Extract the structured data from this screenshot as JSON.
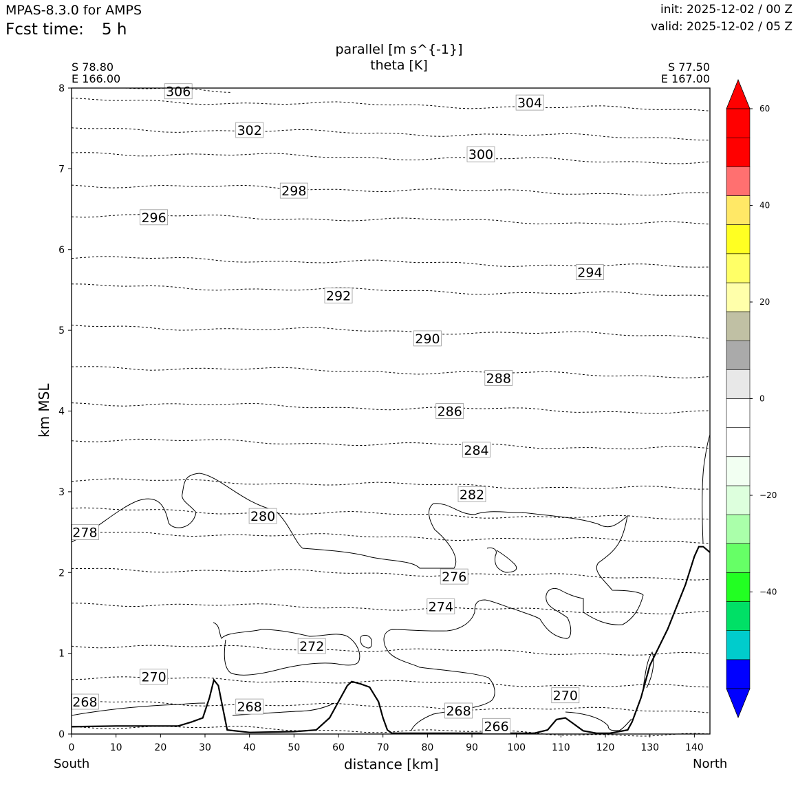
{
  "header": {
    "model": "MPAS-8.3.0 for AMPS",
    "fcst_label": "Fcst time:",
    "fcst_value": "5 h",
    "init": "init: 2025-12-02 / 00 Z",
    "valid": "valid: 2025-12-02 / 05 Z"
  },
  "title": {
    "line1": "parallel [m s^{-1}]",
    "line2": "theta [K]"
  },
  "endpoints": {
    "left_lat": "S 78.80",
    "left_lon": "E 166.00",
    "right_lat": "S 77.50",
    "right_lon": "E 167.00",
    "left_dir": "South",
    "right_dir": "North"
  },
  "colors": {
    "above_max": "#ff0000",
    "below_min": "#0000ff",
    "levels": [
      "#0000ff",
      "#00cccc",
      "#00e066",
      "#22ff22",
      "#66ff66",
      "#aaffaa",
      "#ddffdd",
      "#f2fff2",
      "#ffffff",
      "#ffffff",
      "#e8e8e8",
      "#aaaaaa",
      "#c0c0a4",
      "#ffffaa",
      "#ffff66",
      "#ffff22",
      "#ffe866",
      "#ff7070",
      "#ff0000"
    ]
  },
  "chart_data": {
    "type": "cross-section contour",
    "title": "parallel [m s^{-1}] / theta [K]",
    "xlabel": "distance [km]",
    "ylabel": "km MSL",
    "xlim": [
      0,
      143.5
    ],
    "ylim": [
      0,
      8
    ],
    "xticks": [
      0,
      10,
      20,
      30,
      40,
      50,
      60,
      70,
      80,
      90,
      100,
      110,
      120,
      130,
      140
    ],
    "yticks": [
      0,
      1,
      2,
      3,
      4,
      5,
      6,
      7,
      8
    ],
    "colorbar": {
      "range": [
        -60,
        60
      ],
      "interval": 6,
      "tick_labels": [
        "60",
        "40",
        "20",
        "0",
        "−20",
        "−40"
      ],
      "tick_values": [
        60,
        40,
        20,
        0,
        -20,
        -40
      ],
      "extend": "both"
    },
    "theta_contours": [
      {
        "label": "306",
        "y_km": 8.0,
        "label_x_km": 24,
        "label_y_km": 7.96
      },
      {
        "label": "304",
        "y_km": 7.85,
        "label_x_km": 103,
        "label_y_km": 7.82
      },
      {
        "label": "302",
        "y_km": 7.5,
        "label_x_km": 40,
        "label_y_km": 7.48
      },
      {
        "label": "300",
        "y_km": 7.2,
        "label_x_km": 92,
        "label_y_km": 7.18
      },
      {
        "label": "298",
        "y_km": 6.8,
        "label_x_km": 50,
        "label_y_km": 6.73
      },
      {
        "label": "296",
        "y_km": 6.43,
        "label_x_km": 18.5,
        "label_y_km": 6.4
      },
      {
        "label": "294",
        "y_km": 5.9,
        "label_x_km": 116.5,
        "label_y_km": 5.72
      },
      {
        "label": "292",
        "y_km": 5.55,
        "label_x_km": 60,
        "label_y_km": 5.43
      },
      {
        "label": "290",
        "y_km": 5.05,
        "label_x_km": 80,
        "label_y_km": 4.9
      },
      {
        "label": "288",
        "y_km": 4.55,
        "label_x_km": 96,
        "label_y_km": 4.41
      },
      {
        "label": "286",
        "y_km": 4.1,
        "label_x_km": 85,
        "label_y_km": 4.0
      },
      {
        "label": "284",
        "y_km": 3.65,
        "label_x_km": 91,
        "label_y_km": 3.52
      },
      {
        "label": "282",
        "y_km": 3.15,
        "label_x_km": 90,
        "label_y_km": 2.97
      },
      {
        "label": "280",
        "y_km": 2.78,
        "label_x_km": 43,
        "label_y_km": 2.7
      },
      {
        "label": "278",
        "y_km": 2.5,
        "label_x_km": 3,
        "label_y_km": 2.5
      },
      {
        "label": "276",
        "y_km": 2.05,
        "label_x_km": 86,
        "label_y_km": 1.95
      },
      {
        "label": "274",
        "y_km": 1.62,
        "label_x_km": 83,
        "label_y_km": 1.58
      },
      {
        "label": "272",
        "y_km": 1.1,
        "label_x_km": 54,
        "label_y_km": 1.09
      },
      {
        "label": "270",
        "y_km": 0.7,
        "label_x_km": 18.5,
        "label_y_km": 0.71
      },
      {
        "label": "270",
        "y_km": 0.55,
        "label_x_km": 111,
        "label_y_km": 0.48
      },
      {
        "label": "268",
        "y_km": 0.4,
        "label_x_km": 3,
        "label_y_km": 0.4
      },
      {
        "label": "268",
        "y_km": 0.3,
        "label_x_km": 40,
        "label_y_km": 0.34
      },
      {
        "label": "268",
        "y_km": 0.27,
        "label_x_km": 87,
        "label_y_km": 0.29
      },
      {
        "label": "266",
        "y_km": 0.1,
        "label_x_km": 95.5,
        "label_y_km": 0.1
      }
    ],
    "terrain": {
      "x_km": [
        0,
        10,
        24,
        27,
        29.5,
        31,
        32,
        33,
        34,
        35,
        40,
        50,
        55,
        58,
        60,
        62,
        63,
        65,
        67,
        69,
        70,
        71,
        72,
        80,
        95,
        104,
        107,
        109,
        111,
        113,
        115,
        118,
        121,
        125,
        126,
        128,
        130,
        134,
        138,
        140,
        141,
        142,
        143.5
      ],
      "z_km": [
        0.09,
        0.1,
        0.1,
        0.15,
        0.2,
        0.45,
        0.67,
        0.6,
        0.32,
        0.05,
        0.02,
        0.03,
        0.05,
        0.2,
        0.4,
        0.6,
        0.65,
        0.62,
        0.58,
        0.4,
        0.2,
        0.05,
        0.01,
        0.01,
        0.01,
        0.01,
        0.05,
        0.18,
        0.2,
        0.12,
        0.04,
        0.01,
        0.01,
        0.05,
        0.15,
        0.45,
        0.85,
        1.3,
        1.85,
        2.2,
        2.32,
        2.32,
        2.25
      ]
    }
  }
}
